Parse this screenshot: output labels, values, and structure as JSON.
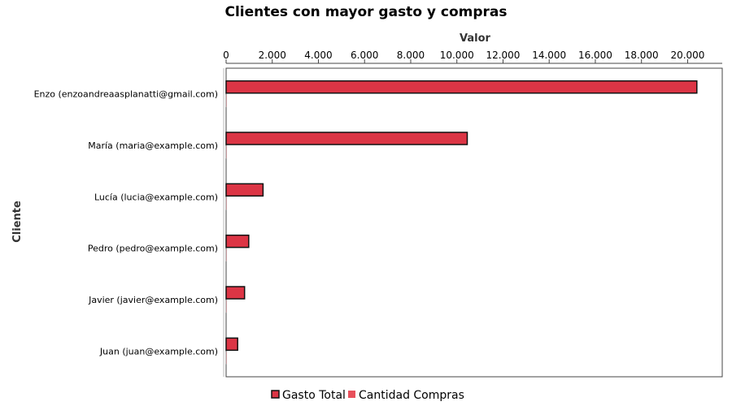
{
  "chart_data": {
    "type": "bar",
    "orientation": "horizontal",
    "title": "Clientes con mayor gasto y compras",
    "xlabel": "Valor",
    "ylabel": "Cliente",
    "xlim": [
      0,
      21500
    ],
    "x_ticks": [
      0,
      2000,
      4000,
      6000,
      8000,
      10000,
      12000,
      14000,
      16000,
      18000,
      20000
    ],
    "x_tick_labels": [
      "0",
      "2.000",
      "4.000",
      "6.000",
      "8.000",
      "10.000",
      "12.000",
      "14.000",
      "16.000",
      "18.000",
      "20.000"
    ],
    "x_axis_position": "top",
    "legend_position": "bottom",
    "grid": false,
    "categories": [
      "Enzo (enzoandreaasplanatti@gmail.com)",
      "María (maria@example.com)",
      "Lucía (lucia@example.com)",
      "Pedro (pedro@example.com)",
      "Javier (javier@example.com)",
      "Juan (juan@example.com)"
    ],
    "series": [
      {
        "name": "Gasto Total",
        "color": "#dc3545",
        "values": [
          20400,
          10450,
          1600,
          980,
          800,
          500
        ]
      },
      {
        "name": "Cantidad Compras",
        "color": "#e8505b",
        "values": [
          3,
          2,
          1,
          1,
          1,
          1
        ]
      }
    ]
  }
}
